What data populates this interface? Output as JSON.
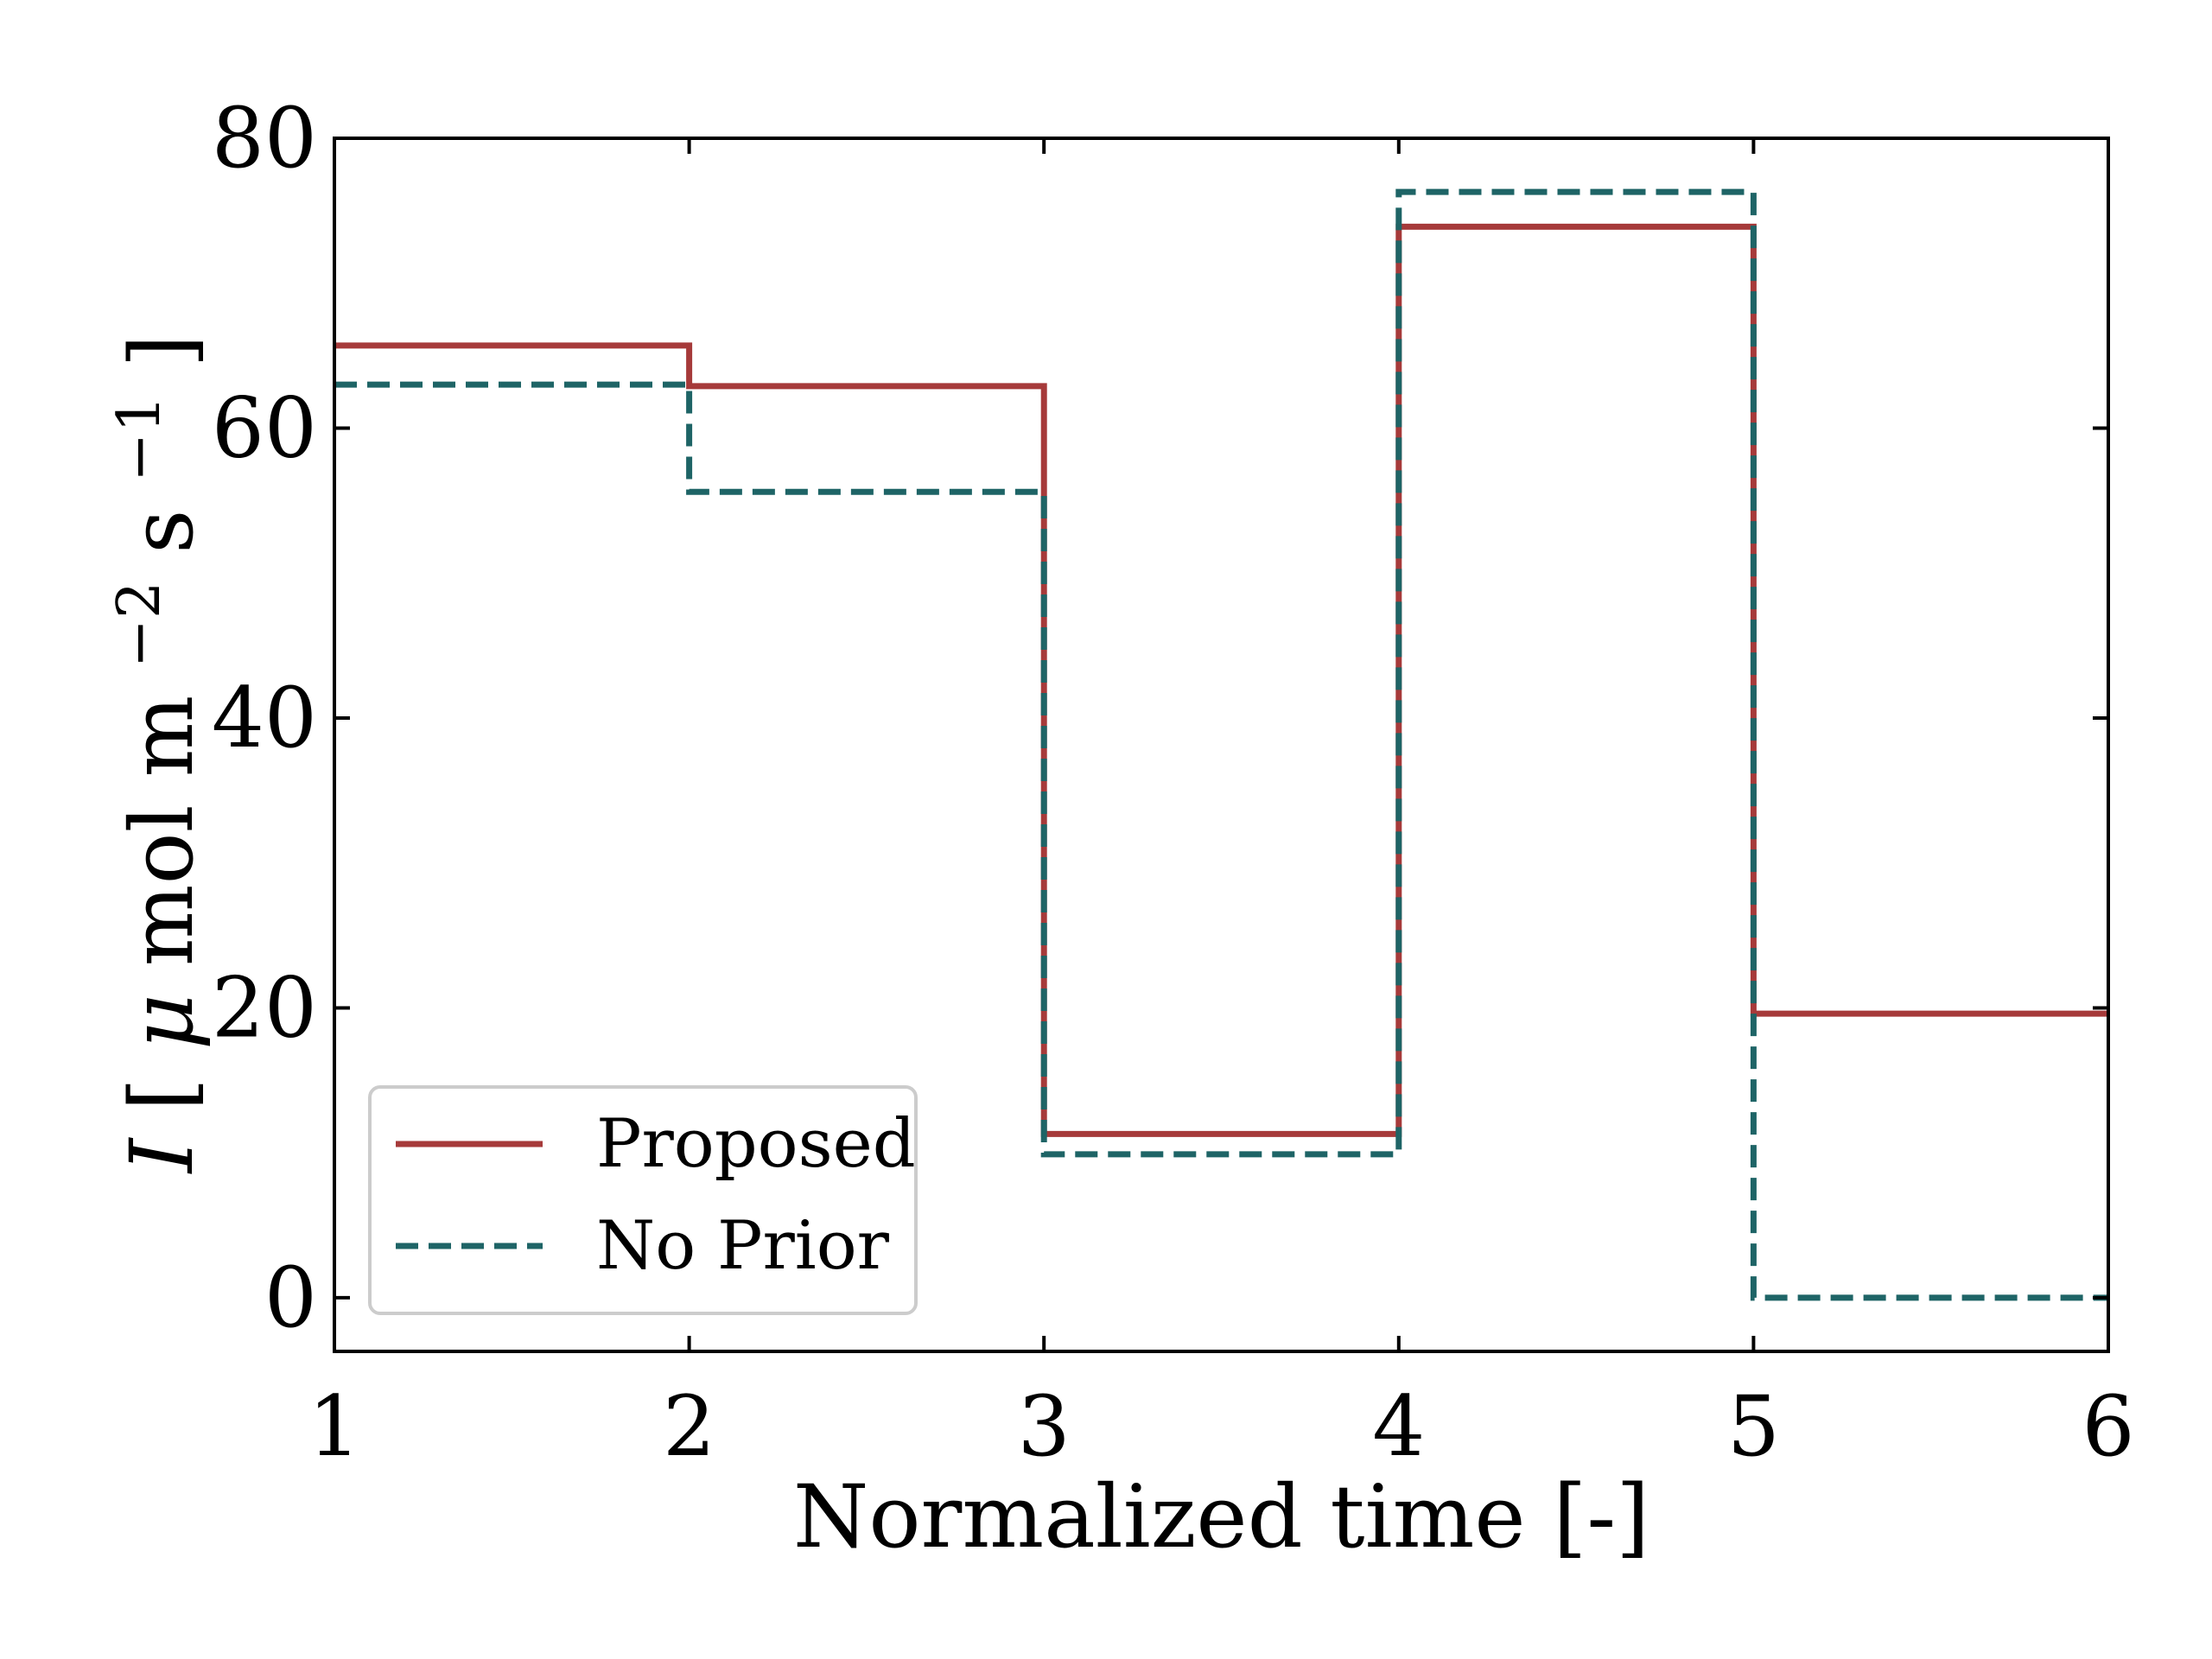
{
  "chart_data": {
    "type": "line",
    "step": "post",
    "xlabel": "Normalized time [-]",
    "ylabel": {
      "var": "I",
      "open": "[",
      "mu": "μ",
      "unit": "mol m",
      "exp1": "−2",
      "unit2": "s",
      "exp2": "−1",
      "close": "]"
    },
    "xlim": [
      1,
      6
    ],
    "ylim": [
      -3.7,
      80
    ],
    "xticks": [
      1,
      2,
      3,
      4,
      5,
      6
    ],
    "yticks": [
      0,
      20,
      40,
      60,
      80
    ],
    "tick_labels_x": [
      "1",
      "2",
      "3",
      "4",
      "5",
      "6"
    ],
    "tick_labels_y": [
      "0",
      "20",
      "40",
      "60",
      "80"
    ],
    "grid": false,
    "legend_position": "lower-left",
    "series": [
      {
        "name": "Proposed",
        "color": "#a63a3a",
        "style": "solid",
        "x": [
          1,
          2,
          3,
          4,
          5,
          6
        ],
        "values": [
          65.7,
          62.9,
          11.3,
          73.9,
          19.6,
          19.6
        ]
      },
      {
        "name": "No Prior",
        "color": "#1e6466",
        "style": "dashed",
        "x": [
          1,
          2,
          3,
          4,
          5,
          6
        ],
        "values": [
          63.0,
          55.6,
          9.9,
          76.3,
          0.0,
          0.0
        ]
      }
    ]
  }
}
